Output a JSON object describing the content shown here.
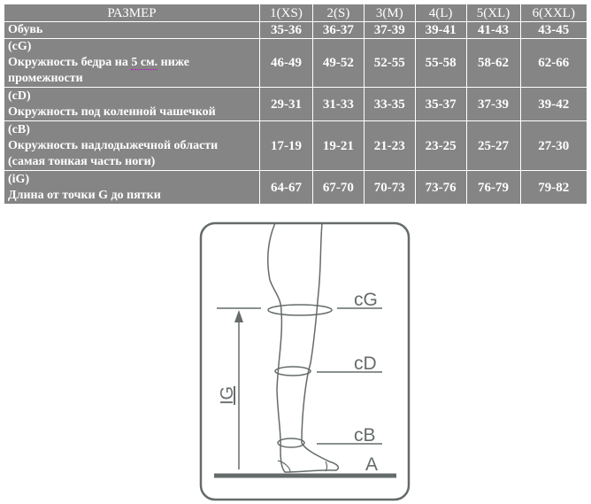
{
  "table": {
    "header": [
      "РАЗМЕР",
      "1(XS)",
      "2(S)",
      "3(M)",
      "4(L)",
      "5(XL)",
      "6(XXL)"
    ],
    "rows": [
      {
        "code": "",
        "label": "Обувь",
        "label2": "",
        "values": [
          "35-36",
          "36-37",
          "37-39",
          "39-41",
          "41-43",
          "43-45"
        ]
      },
      {
        "code": "(cG)",
        "label": "Окружность бедра на",
        "underlined": "5 см.",
        "label_rest": "ниже",
        "label2": "промежности",
        "values": [
          "46-49",
          "49-52",
          "52-55",
          "55-58",
          "58-62",
          "62-66"
        ]
      },
      {
        "code": "(cD)",
        "label": "Окружность под коленной чашечкой",
        "label2": "",
        "values": [
          "29-31",
          "31-33",
          "33-35",
          "35-37",
          "37-39",
          "39-42"
        ]
      },
      {
        "code": "(cB)",
        "label": "Окружность надлодыжечной области",
        "label2": "(самая тонкая часть ноги)",
        "values": [
          "17-19",
          "19-21",
          "21-23",
          "23-25",
          "25-27",
          "27-30"
        ]
      },
      {
        "code": "(iG)",
        "label": "Длина от точки G до пятки",
        "label2": "",
        "values": [
          "64-67",
          "67-70",
          "70-73",
          "73-76",
          "76-79",
          "79-82"
        ]
      }
    ]
  },
  "diagram": {
    "labels": {
      "cG": "cG",
      "cD": "cD",
      "cB": "cB",
      "A": "A",
      "IG": "IG"
    },
    "color": "#656b6b"
  }
}
